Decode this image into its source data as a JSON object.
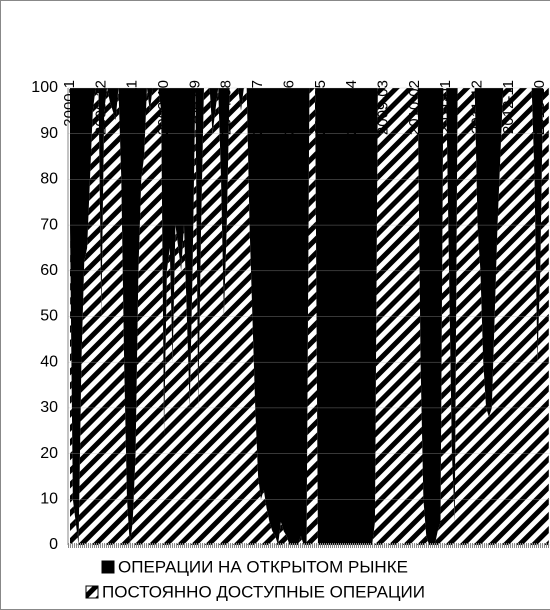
{
  "chart_data": {
    "type": "stacked_area",
    "categories": [
      "2000-1",
      null,
      null,
      null,
      null,
      null,
      null,
      null,
      null,
      null,
      null,
      "2000-12",
      null,
      null,
      null,
      null,
      null,
      null,
      null,
      null,
      null,
      null,
      "2001-11",
      null,
      null,
      null,
      null,
      null,
      null,
      null,
      null,
      null,
      null,
      "2002-10",
      null,
      null,
      null,
      null,
      null,
      null,
      null,
      null,
      null,
      null,
      "2003-9",
      null,
      null,
      null,
      null,
      null,
      null,
      null,
      null,
      null,
      null,
      "2004-08",
      null,
      null,
      null,
      null,
      null,
      null,
      null,
      null,
      null,
      null,
      "2005-07",
      null,
      null,
      null,
      null,
      null,
      null,
      null,
      null,
      null,
      null,
      "2006-06",
      null,
      null,
      null,
      null,
      null,
      null,
      null,
      null,
      null,
      null,
      "2007-05",
      null,
      null,
      null,
      null,
      null,
      null,
      null,
      null,
      null,
      null,
      "2008-04",
      null,
      null,
      null,
      null,
      null,
      null,
      null,
      null,
      null,
      null,
      "2009-03",
      null,
      null,
      null,
      null,
      null,
      null,
      null,
      null,
      null,
      null,
      "2010-02",
      null,
      null,
      null,
      null,
      null,
      null,
      null,
      null,
      null,
      null,
      "2011-01",
      null,
      null,
      null,
      null,
      null,
      null,
      null,
      null,
      null,
      null,
      "2011-12",
      null,
      null,
      null,
      null,
      null,
      null,
      null,
      null,
      null,
      null,
      "2012-11",
      null,
      null,
      null,
      null,
      null,
      null,
      null,
      null,
      null,
      null,
      "2013-10",
      null,
      null,
      null
    ],
    "series": [
      {
        "name": "ОПЕРАЦИИ НА ОТКРЫТОМ РЫНКЕ",
        "color": "#000000",
        "fill": "solid",
        "values": [
          30,
          90,
          95,
          100,
          60,
          38,
          35,
          20,
          5,
          0,
          0,
          50,
          5,
          0,
          3,
          5,
          7,
          0,
          20,
          60,
          90,
          100,
          95,
          80,
          40,
          20,
          15,
          0,
          5,
          0,
          0,
          0,
          5,
          76,
          40,
          35,
          60,
          30,
          35,
          40,
          30,
          50,
          70,
          40,
          0,
          70,
          30,
          0,
          0,
          0,
          10,
          5,
          0,
          20,
          50,
          30,
          0,
          0,
          0,
          0,
          5,
          0,
          0,
          30,
          50,
          70,
          85,
          90,
          88,
          92,
          95,
          97,
          98,
          100,
          95,
          97,
          98,
          100,
          100,
          100,
          100,
          98,
          100,
          100,
          0,
          0,
          0,
          100,
          100,
          100,
          100,
          100,
          100,
          100,
          100,
          100,
          100,
          100,
          100,
          100,
          100,
          100,
          100,
          100,
          100,
          100,
          100,
          95,
          0,
          0,
          0,
          0,
          0,
          0,
          0,
          0,
          0,
          0,
          0,
          0,
          0,
          0,
          0,
          60,
          90,
          98,
          100,
          100,
          100,
          97,
          95,
          0,
          0,
          40,
          80,
          95,
          0,
          0,
          0,
          0,
          0,
          0,
          0,
          30,
          40,
          60,
          70,
          72,
          70,
          50,
          30,
          15,
          0,
          0,
          0,
          0,
          0,
          0,
          0,
          0,
          0,
          0,
          0,
          20,
          60,
          40,
          0,
          0,
          0
        ]
      },
      {
        "name": "ПОСТОЯННО ДОСТУПНЫЕ ОПЕРАЦИИ",
        "color": "#000000",
        "fill": "hatch",
        "values": [
          70,
          10,
          5,
          0,
          40,
          62,
          65,
          80,
          95,
          100,
          100,
          50,
          95,
          100,
          97,
          95,
          93,
          100,
          80,
          40,
          10,
          0,
          5,
          20,
          60,
          80,
          85,
          100,
          95,
          100,
          100,
          100,
          95,
          24,
          60,
          65,
          40,
          70,
          65,
          60,
          70,
          50,
          30,
          60,
          100,
          30,
          70,
          100,
          100,
          100,
          90,
          95,
          100,
          80,
          50,
          70,
          100,
          100,
          100,
          100,
          95,
          100,
          100,
          70,
          50,
          30,
          15,
          10,
          12,
          8,
          5,
          3,
          2,
          0,
          5,
          3,
          2,
          0,
          0,
          0,
          0,
          2,
          0,
          0,
          100,
          100,
          100,
          0,
          0,
          0,
          0,
          0,
          0,
          0,
          0,
          0,
          0,
          0,
          0,
          0,
          0,
          0,
          0,
          0,
          0,
          0,
          0,
          5,
          100,
          100,
          100,
          100,
          100,
          100,
          100,
          100,
          100,
          100,
          100,
          100,
          100,
          100,
          100,
          40,
          10,
          2,
          0,
          0,
          0,
          3,
          5,
          100,
          100,
          60,
          20,
          5,
          100,
          100,
          100,
          100,
          100,
          100,
          100,
          70,
          60,
          40,
          30,
          28,
          30,
          50,
          70,
          85,
          100,
          100,
          100,
          100,
          100,
          100,
          100,
          100,
          100,
          100,
          100,
          80,
          40,
          60,
          100,
          100,
          100
        ]
      }
    ],
    "ylim": [
      0,
      100
    ],
    "yticks": [
      0,
      10,
      20,
      30,
      40,
      50,
      60,
      70,
      80,
      90,
      100
    ],
    "grid": true
  }
}
